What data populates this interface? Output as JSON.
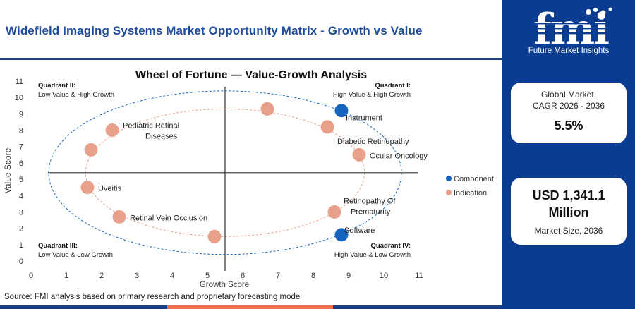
{
  "page_title": "Widefield Imaging Systems Market Opportunity Matrix - Growth vs Value",
  "source_note": "Source: FMI analysis based on primary research and proprietary forecasting model",
  "brand": {
    "logo_text": "fmi",
    "tagline": "Future Market Insights",
    "website": "www.futuremarketinsights.com",
    "navy": "#0a3d91",
    "title_blue": "#1e4b9b"
  },
  "stats": {
    "cagr_label_line1": "Global Market,",
    "cagr_label_line2": "CAGR 2026 - 2036",
    "cagr_value": "5.5%",
    "market_value_line1": "USD 1,341.1",
    "market_value_line2": "Million",
    "market_label": "Market Size, 2036"
  },
  "chart_data": {
    "type": "scatter",
    "title": "Wheel of Fortune — Value-Growth Analysis",
    "xlabel": "Growth Score",
    "ylabel": "Value Score",
    "xlim": [
      0,
      11
    ],
    "ylim": [
      0,
      11
    ],
    "xticks": [
      0,
      1,
      2,
      3,
      4,
      5,
      6,
      7,
      8,
      9,
      10,
      11
    ],
    "yticks": [
      0,
      1,
      2,
      3,
      4,
      5,
      6,
      7,
      8,
      9,
      10,
      11
    ],
    "quadrant_divider": {
      "x": 5.5,
      "y": 5.4
    },
    "grid": false,
    "legend_position": "right",
    "legend": [
      {
        "label": "Component",
        "color": "#1565c0"
      },
      {
        "label": "Indication",
        "color": "#e8a08a"
      }
    ],
    "quadrants": [
      {
        "title": "Quadrant II:",
        "subtitle": "Low Value & High Growth",
        "position": "top-left"
      },
      {
        "title": "Quadrant I:",
        "subtitle": "High Value & High Growth",
        "position": "top-right"
      },
      {
        "title": "Quadrant III:",
        "subtitle": "Low Value & Low Growth",
        "position": "bottom-left"
      },
      {
        "title": "Quadrant IV:",
        "subtitle": "High Value & Low Growth",
        "position": "bottom-right"
      }
    ],
    "ellipse": {
      "center_x": 5.5,
      "center_y": 5.4,
      "semi_x": 5.0,
      "semi_y": 5.0,
      "color": "#1565c0"
    },
    "inner_ring": {
      "center_x": 5.5,
      "center_y": 5.4,
      "semi_x": 3.95,
      "semi_y": 3.9,
      "color": "#e8a08a"
    },
    "points": [
      {
        "x": 8.8,
        "y": 9.2,
        "series": "Component",
        "label": "Instrument"
      },
      {
        "x": 8.8,
        "y": 1.6,
        "series": "Component",
        "label": "Software"
      },
      {
        "x": 6.7,
        "y": 9.3,
        "series": "Indication",
        "label": ""
      },
      {
        "x": 8.4,
        "y": 8.2,
        "series": "Indication",
        "label": "Diabetic Retinopathy"
      },
      {
        "x": 9.3,
        "y": 6.5,
        "series": "Indication",
        "label": "Ocular Oncology"
      },
      {
        "x": 8.6,
        "y": 3.0,
        "series": "Indication",
        "label": "Retinopathy Of Prematurity"
      },
      {
        "x": 5.2,
        "y": 1.5,
        "series": "Indication",
        "label": ""
      },
      {
        "x": 2.5,
        "y": 2.7,
        "series": "Indication",
        "label": "Retinal Vein Occlusion"
      },
      {
        "x": 1.6,
        "y": 4.5,
        "series": "Indication",
        "label": "Uveitis"
      },
      {
        "x": 1.7,
        "y": 6.8,
        "series": "Indication",
        "label": ""
      },
      {
        "x": 2.3,
        "y": 8.0,
        "series": "Indication",
        "label": "Pediatric Retinal Diseases"
      }
    ]
  }
}
